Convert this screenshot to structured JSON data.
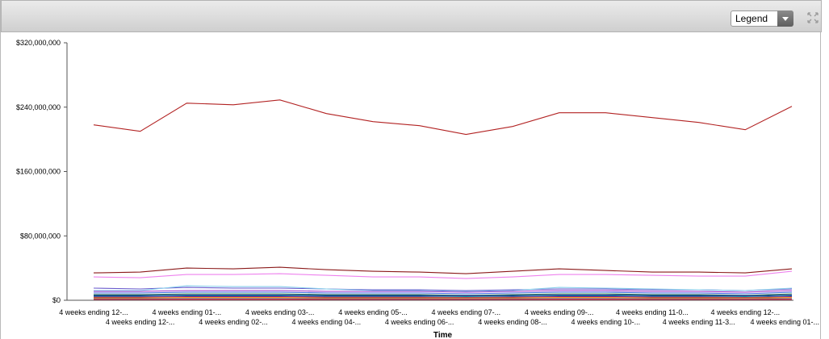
{
  "toolbar": {
    "legend_label": "Legend",
    "expand_icon": "expand-arrows-icon",
    "dropdown_icon": "chevron-down-icon"
  },
  "chart_data": {
    "type": "line",
    "xlabel": "Time",
    "ylabel": "",
    "ylim": [
      0,
      320000000
    ],
    "yticks": [
      "$0",
      "$80,000,000",
      "$160,000,000",
      "$240,000,000",
      "$320,000,000"
    ],
    "ytick_values": [
      0,
      80000000,
      160000000,
      240000000,
      320000000
    ],
    "grid": false,
    "legend": "hidden",
    "categories": [
      "4 weeks ending 12-...",
      "4 weeks ending 12-...",
      "4 weeks ending 01-...",
      "4 weeks ending 02-...",
      "4 weeks ending 03-...",
      "4 weeks ending 04-...",
      "4 weeks ending 05-...",
      "4 weeks ending 06-...",
      "4 weeks ending 07-...",
      "4 weeks ending 08-...",
      "4 weeks ending 09-...",
      "4 weeks ending 10-...",
      "4 weeks ending 11-0...",
      "4 weeks ending 11-3...",
      "4 weeks ending 12-...",
      "4 weeks ending 01-..."
    ],
    "series": [
      {
        "color": "#b22222",
        "values": [
          218000000,
          210000000,
          245000000,
          243000000,
          249000000,
          232000000,
          222000000,
          217000000,
          206000000,
          216000000,
          233000000,
          233000000,
          227000000,
          221000000,
          212000000,
          241000000
        ]
      },
      {
        "color": "#8b1a1a",
        "values": [
          34000000,
          35000000,
          40000000,
          39000000,
          41000000,
          38000000,
          36000000,
          35000000,
          33000000,
          36000000,
          39000000,
          37000000,
          35000000,
          35000000,
          34000000,
          39000000
        ]
      },
      {
        "color": "#ee82ee",
        "values": [
          29000000,
          28000000,
          32000000,
          32000000,
          33000000,
          31000000,
          29000000,
          29000000,
          27000000,
          29000000,
          32000000,
          32000000,
          31000000,
          30000000,
          30000000,
          36000000
        ]
      },
      {
        "color": "#6a5acd",
        "values": [
          15000000,
          14000000,
          16000000,
          15000000,
          15000000,
          14000000,
          13000000,
          13000000,
          12000000,
          13000000,
          14000000,
          14000000,
          13000000,
          13000000,
          12000000,
          14000000
        ]
      },
      {
        "color": "#87ceeb",
        "values": [
          12000000,
          12000000,
          18000000,
          17000000,
          17000000,
          14000000,
          12000000,
          12000000,
          11000000,
          12000000,
          16000000,
          15000000,
          14000000,
          13000000,
          12000000,
          15000000
        ]
      },
      {
        "color": "#9932cc",
        "values": [
          11000000,
          11000000,
          12000000,
          12000000,
          12000000,
          11000000,
          11000000,
          11000000,
          10000000,
          11000000,
          12000000,
          12000000,
          11000000,
          11000000,
          10000000,
          12000000
        ]
      },
      {
        "color": "#4169e1",
        "values": [
          9000000,
          9000000,
          10000000,
          10000000,
          10000000,
          9000000,
          9000000,
          9000000,
          8000000,
          9000000,
          10000000,
          10000000,
          9000000,
          9000000,
          8000000,
          10000000
        ]
      },
      {
        "color": "#2e8b57",
        "values": [
          7000000,
          7000000,
          8000000,
          8000000,
          8000000,
          7000000,
          7000000,
          7000000,
          6000000,
          7000000,
          8000000,
          8000000,
          7000000,
          7000000,
          6000000,
          8000000
        ]
      },
      {
        "color": "#00008b",
        "values": [
          6000000,
          6000000,
          6500000,
          6500000,
          6500000,
          6000000,
          6000000,
          6000000,
          5500000,
          6000000,
          6500000,
          6500000,
          6000000,
          6000000,
          5500000,
          6500000
        ]
      },
      {
        "color": "#20b2aa",
        "values": [
          5000000,
          5000000,
          5500000,
          5500000,
          5500000,
          5000000,
          5000000,
          5000000,
          4500000,
          5000000,
          5500000,
          5500000,
          5000000,
          5000000,
          4500000,
          5500000
        ]
      },
      {
        "color": "#800080",
        "values": [
          4000000,
          4000000,
          4500000,
          4500000,
          4500000,
          4000000,
          4000000,
          4000000,
          3500000,
          4000000,
          4500000,
          4500000,
          4000000,
          4000000,
          3500000,
          4500000
        ]
      },
      {
        "color": "#ff8c00",
        "values": [
          3000000,
          3000000,
          3300000,
          3300000,
          3300000,
          3000000,
          3000000,
          3000000,
          2800000,
          3000000,
          3300000,
          3300000,
          3000000,
          3000000,
          2800000,
          3300000
        ]
      },
      {
        "color": "#708090",
        "values": [
          2000000,
          2000000,
          2200000,
          2200000,
          2200000,
          2000000,
          2000000,
          2000000,
          1800000,
          2000000,
          2200000,
          2200000,
          2000000,
          2000000,
          1800000,
          2200000
        ]
      },
      {
        "color": "#dc143c",
        "values": [
          1000000,
          1000000,
          1100000,
          1100000,
          1100000,
          1000000,
          1000000,
          1000000,
          900000,
          1000000,
          1100000,
          1100000,
          1000000,
          1000000,
          900000,
          1100000
        ]
      }
    ]
  }
}
